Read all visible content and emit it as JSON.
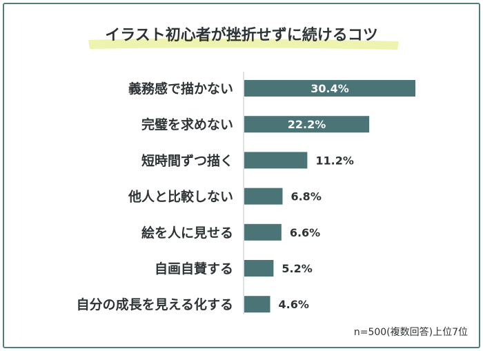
{
  "chart_data": {
    "type": "bar",
    "orientation": "horizontal",
    "title": "イラスト初心者が挫折せずに続けるコツ",
    "categories": [
      "義務感で描かない",
      "完璧を求めない",
      "短時間ずつ描く",
      "他人と比較しない",
      "絵を人に見せる",
      "自画自賛する",
      "自分の成長を見える化する"
    ],
    "values": [
      30.4,
      22.2,
      11.2,
      6.8,
      6.6,
      5.2,
      4.6
    ],
    "value_labels": [
      "30.4%",
      "22.2%",
      "11.2%",
      "6.8%",
      "6.6%",
      "5.2%",
      "4.6%"
    ],
    "unit": "%",
    "xlim": [
      0,
      30.4
    ],
    "grid": false,
    "legend": "none",
    "note": "n=500(複数回答)上位7位",
    "colors": {
      "bar": "#4a7476",
      "title_highlight": "#eef3b0",
      "frame": "#4f7c7c",
      "label_inside": "#ffffff",
      "label_outside": "#2d3335"
    }
  }
}
